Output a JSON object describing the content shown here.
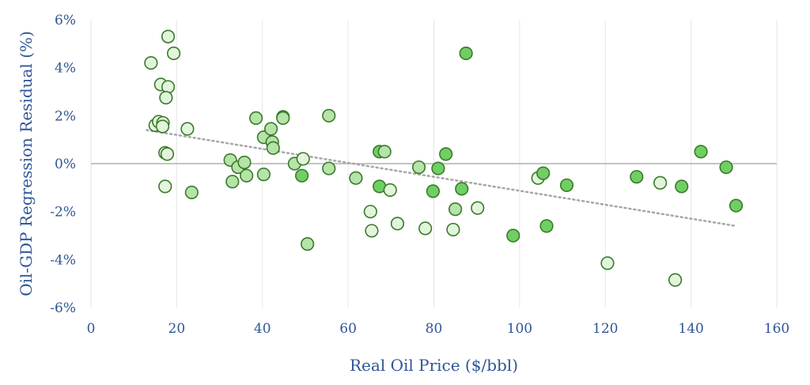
{
  "colors": {
    "text": "#2f5597",
    "marker_stroke": "#3a7a2a",
    "marker_light_fill": "#e2f5dc",
    "marker_mid_fill": "#b5e3a8",
    "marker_dark_fill": "#6fcf62",
    "trend": "#a6a6a6",
    "grid": "#e6e6e6",
    "zero_line": "#b0b0b0"
  },
  "chart_data": {
    "type": "scatter",
    "xlabel": "Real Oil Price ($/bbl)",
    "ylabel": "Oil-GDP Regression Residual (%)",
    "xlim": [
      0,
      160
    ],
    "ylim": [
      -6,
      6
    ],
    "x_ticks": [
      "0",
      "20",
      "40",
      "60",
      "80",
      "100",
      "120",
      "140",
      "160"
    ],
    "y_ticks": [
      "6%",
      "4%",
      "2%",
      "0%",
      "-2%",
      "-4%",
      "-6%"
    ],
    "grid": "vertical",
    "trendline": {
      "style": "dotted",
      "x": [
        13,
        150.5
      ],
      "y": [
        1.4,
        -2.6
      ]
    },
    "points": [
      {
        "x": 14,
        "y": 4.2,
        "shade": "light"
      },
      {
        "x": 18,
        "y": 5.3,
        "shade": "light"
      },
      {
        "x": 19.3,
        "y": 4.6,
        "shade": "light"
      },
      {
        "x": 16.3,
        "y": 3.3,
        "shade": "light"
      },
      {
        "x": 18,
        "y": 3.2,
        "shade": "light"
      },
      {
        "x": 17.5,
        "y": 2.75,
        "shade": "light"
      },
      {
        "x": 15,
        "y": 1.6,
        "shade": "light"
      },
      {
        "x": 15.8,
        "y": 1.75,
        "shade": "light"
      },
      {
        "x": 16.8,
        "y": 1.7,
        "shade": "light"
      },
      {
        "x": 16.7,
        "y": 1.55,
        "shade": "light"
      },
      {
        "x": 22.5,
        "y": 1.45,
        "shade": "light"
      },
      {
        "x": 17.3,
        "y": 0.45,
        "shade": "light"
      },
      {
        "x": 17.8,
        "y": 0.4,
        "shade": "light"
      },
      {
        "x": 17.3,
        "y": -0.95,
        "shade": "light"
      },
      {
        "x": 23.5,
        "y": -1.2,
        "shade": "mid"
      },
      {
        "x": 32.5,
        "y": 0.15,
        "shade": "mid"
      },
      {
        "x": 33,
        "y": -0.75,
        "shade": "mid"
      },
      {
        "x": 34.3,
        "y": -0.15,
        "shade": "mid"
      },
      {
        "x": 35.8,
        "y": 0.05,
        "shade": "mid"
      },
      {
        "x": 36.3,
        "y": -0.5,
        "shade": "mid"
      },
      {
        "x": 38.5,
        "y": 1.9,
        "shade": "mid"
      },
      {
        "x": 40.3,
        "y": 1.1,
        "shade": "mid"
      },
      {
        "x": 40.3,
        "y": -0.45,
        "shade": "mid"
      },
      {
        "x": 42,
        "y": 1.45,
        "shade": "mid"
      },
      {
        "x": 42.3,
        "y": 0.9,
        "shade": "mid"
      },
      {
        "x": 42.5,
        "y": 0.65,
        "shade": "mid"
      },
      {
        "x": 44.8,
        "y": 1.95,
        "shade": "mid"
      },
      {
        "x": 44.8,
        "y": 1.9,
        "shade": "mid"
      },
      {
        "x": 47.5,
        "y": 0,
        "shade": "mid"
      },
      {
        "x": 49.2,
        "y": -0.5,
        "shade": "dark"
      },
      {
        "x": 49.5,
        "y": 0.2,
        "shade": "light"
      },
      {
        "x": 50.5,
        "y": -3.35,
        "shade": "mid"
      },
      {
        "x": 55.5,
        "y": 2.0,
        "shade": "mid"
      },
      {
        "x": 55.5,
        "y": -0.2,
        "shade": "mid"
      },
      {
        "x": 61.8,
        "y": -0.6,
        "shade": "mid"
      },
      {
        "x": 65.2,
        "y": -2.0,
        "shade": "light"
      },
      {
        "x": 65.5,
        "y": -2.8,
        "shade": "light"
      },
      {
        "x": 67.3,
        "y": 0.5,
        "shade": "dark"
      },
      {
        "x": 67.3,
        "y": -0.95,
        "shade": "dark"
      },
      {
        "x": 68.5,
        "y": 0.5,
        "shade": "mid"
      },
      {
        "x": 69.8,
        "y": -1.1,
        "shade": "light"
      },
      {
        "x": 71.5,
        "y": -2.5,
        "shade": "light"
      },
      {
        "x": 76.5,
        "y": -0.15,
        "shade": "mid"
      },
      {
        "x": 78,
        "y": -2.7,
        "shade": "light"
      },
      {
        "x": 79.8,
        "y": -1.15,
        "shade": "dark"
      },
      {
        "x": 81,
        "y": -0.2,
        "shade": "dark"
      },
      {
        "x": 82.8,
        "y": 0.4,
        "shade": "dark"
      },
      {
        "x": 84.5,
        "y": -2.75,
        "shade": "light"
      },
      {
        "x": 85,
        "y": -1.9,
        "shade": "mid"
      },
      {
        "x": 86.5,
        "y": -1.05,
        "shade": "dark"
      },
      {
        "x": 87.5,
        "y": 4.6,
        "shade": "dark"
      },
      {
        "x": 90.2,
        "y": -1.85,
        "shade": "light"
      },
      {
        "x": 98.5,
        "y": -3.0,
        "shade": "dark"
      },
      {
        "x": 104.3,
        "y": -0.6,
        "shade": "light"
      },
      {
        "x": 105.5,
        "y": -0.4,
        "shade": "dark"
      },
      {
        "x": 106.3,
        "y": -2.6,
        "shade": "dark"
      },
      {
        "x": 111,
        "y": -0.9,
        "shade": "dark"
      },
      {
        "x": 120.5,
        "y": -4.15,
        "shade": "light"
      },
      {
        "x": 127.3,
        "y": -0.55,
        "shade": "dark"
      },
      {
        "x": 132.8,
        "y": -0.8,
        "shade": "light"
      },
      {
        "x": 136.3,
        "y": -4.85,
        "shade": "light"
      },
      {
        "x": 137.8,
        "y": -0.95,
        "shade": "dark"
      },
      {
        "x": 142.3,
        "y": 0.5,
        "shade": "dark"
      },
      {
        "x": 148.2,
        "y": -0.15,
        "shade": "dark"
      },
      {
        "x": 150.5,
        "y": -1.75,
        "shade": "dark"
      }
    ]
  }
}
